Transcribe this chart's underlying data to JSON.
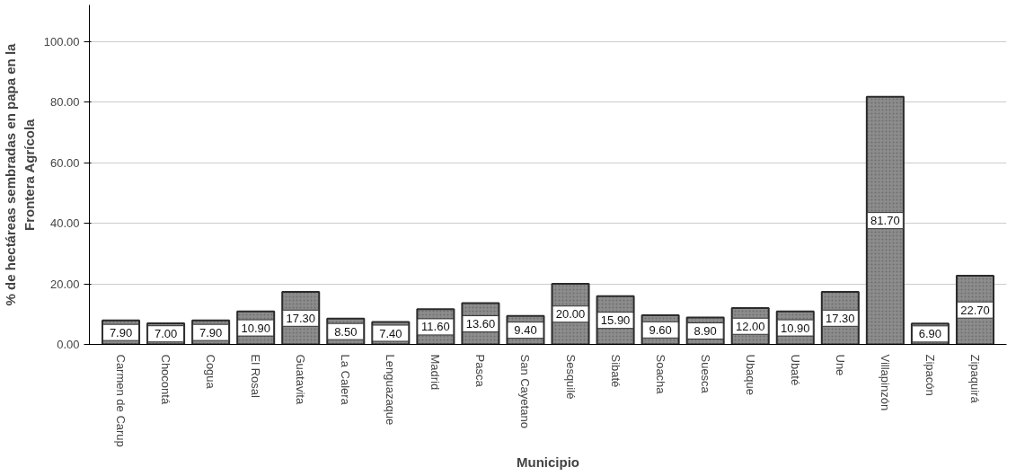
{
  "chart_data": {
    "type": "bar",
    "xlabel": "Municipio",
    "ylabel": "% de hectáreas sembradas en papa en la\nFrontera Agrícola",
    "categories": [
      "Carmen de Carup",
      "Chocontá",
      "Cogua",
      "El Rosal",
      "Guatavita",
      "La Calera",
      "Lenguazaque",
      "Madrid",
      "Pasca",
      "San Cayetano",
      "Sesquilé",
      "Sibaté",
      "Soacha",
      "Suesca",
      "Ubaque",
      "Ubaté",
      "Une",
      "Villapinzón",
      "Zipacón",
      "Zipaquirá"
    ],
    "values": [
      7.9,
      7.0,
      7.9,
      10.9,
      17.3,
      8.5,
      7.4,
      11.6,
      13.6,
      9.4,
      20.0,
      15.9,
      9.6,
      8.9,
      12.0,
      10.9,
      17.3,
      81.7,
      6.9,
      22.7
    ],
    "value_labels": [
      "7.90",
      "7.00",
      "7.90",
      "10.90",
      "17.30",
      "8.50",
      "7.40",
      "11.60",
      "13.60",
      "9.40",
      "20.00",
      "15.90",
      "9.60",
      "8.90",
      "12.00",
      "10.90",
      "17.30",
      "81.70",
      "6.90",
      "22.70"
    ],
    "color": "#8c8c8c",
    "ylim": [
      0,
      112
    ],
    "yticks": [
      {
        "value": 0,
        "label": "0.00"
      },
      {
        "value": 20,
        "label": "20.00"
      },
      {
        "value": 40,
        "label": "40.00"
      },
      {
        "value": 60,
        "label": "60.00"
      },
      {
        "value": 80,
        "label": "80.00"
      },
      {
        "value": 100,
        "label": "100.00"
      }
    ],
    "grid": "y"
  }
}
